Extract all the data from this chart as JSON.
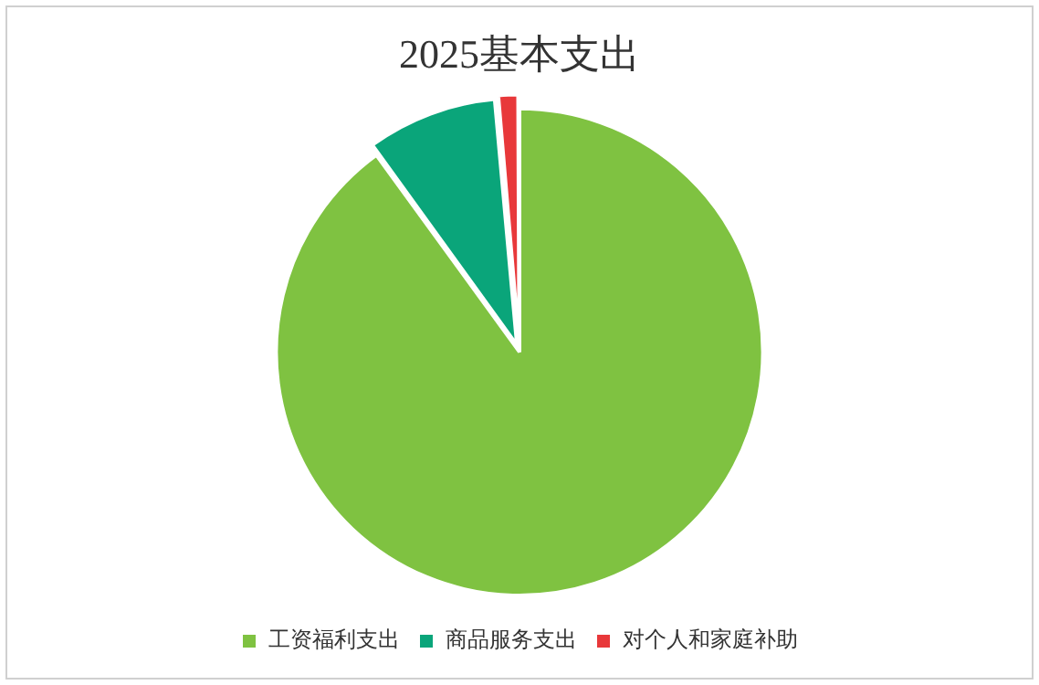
{
  "chart_data": {
    "type": "pie",
    "title": "2025基本支出",
    "categories": [
      "工资福利支出",
      "商品服务支出",
      "对个人和家庭补助"
    ],
    "values": [
      90,
      8.6,
      1.4
    ],
    "colors": [
      "#7fc241",
      "#0aa57a",
      "#e8383a"
    ],
    "legend": "bottom"
  }
}
